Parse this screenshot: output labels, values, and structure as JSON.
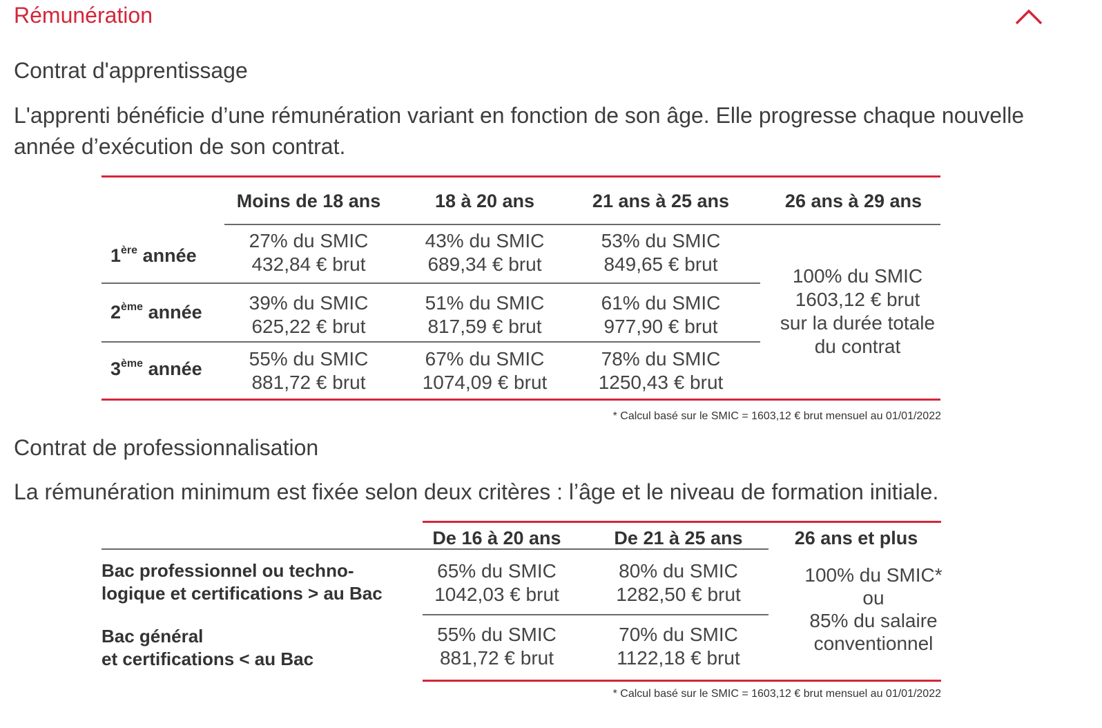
{
  "accordion": {
    "title": "Rémunération",
    "toggle_icon": "chevron-up-icon"
  },
  "colors": {
    "accent": "#d4263a",
    "text": "#3d3d3d",
    "rule": "#6a6a6a"
  },
  "apprentissage": {
    "title": "Contrat d'apprentissage",
    "description": "L'apprenti bénéficie d’une rémunération variant en fonction de son âge. Elle progresse chaque nouvelle année d’exécution de son contrat.",
    "columns": [
      "Moins de 18 ans",
      "18 à 20 ans",
      "21 ans à 25 ans",
      "26 ans à 29 ans"
    ],
    "rows": [
      {
        "num": "1",
        "sup": "ère",
        "label": "année",
        "cells": [
          [
            "27% du SMIC",
            "432,84 € brut"
          ],
          [
            "43% du SMIC",
            "689,34 € brut"
          ],
          [
            "53% du SMIC",
            "849,65 € brut"
          ]
        ]
      },
      {
        "num": "2",
        "sup": "ème",
        "label": "année",
        "cells": [
          [
            "39% du SMIC",
            "625,22 € brut"
          ],
          [
            "51% du SMIC",
            "817,59 € brut"
          ],
          [
            "61% du SMIC",
            "977,90 € brut"
          ]
        ]
      },
      {
        "num": "3",
        "sup": "ème",
        "label": "année",
        "cells": [
          [
            "55% du SMIC",
            "881,72 € brut"
          ],
          [
            "67% du SMIC",
            "1074,09 € brut"
          ],
          [
            "78% du SMIC",
            "1250,43 € brut"
          ]
        ]
      }
    ],
    "merged_cell": [
      "100% du SMIC",
      "1603,12 € brut",
      "sur la durée totale",
      "du contrat"
    ],
    "footnote": "* Calcul basé sur le SMIC = 1603,12 € brut mensuel au 01/01/2022"
  },
  "professionnalisation": {
    "title": "Contrat de professionnalisation",
    "description": "La rémunération minimum est fixée selon deux critères : l’âge et le niveau de formation initiale.",
    "columns": [
      "De 16 à 20 ans",
      "De 21 à 25 ans",
      "26 ans et plus"
    ],
    "rows": [
      {
        "label": [
          "Bac professionnel ou techno-",
          "logique et certifications > au Bac"
        ],
        "cells": [
          [
            "65% du SMIC",
            "1042,03 € brut"
          ],
          [
            "80% du SMIC",
            "1282,50 € brut"
          ]
        ]
      },
      {
        "label": [
          "Bac général",
          "et certifications < au Bac"
        ],
        "cells": [
          [
            "55% du SMIC",
            "881,72 € brut"
          ],
          [
            "70% du SMIC",
            "1122,18 € brut"
          ]
        ]
      }
    ],
    "merged_cell": [
      "100% du SMIC*",
      "ou",
      "85% du salaire",
      "conventionnel"
    ],
    "footnote": "* Calcul basé sur le SMIC = 1603,12 € brut mensuel au 01/01/2022"
  }
}
